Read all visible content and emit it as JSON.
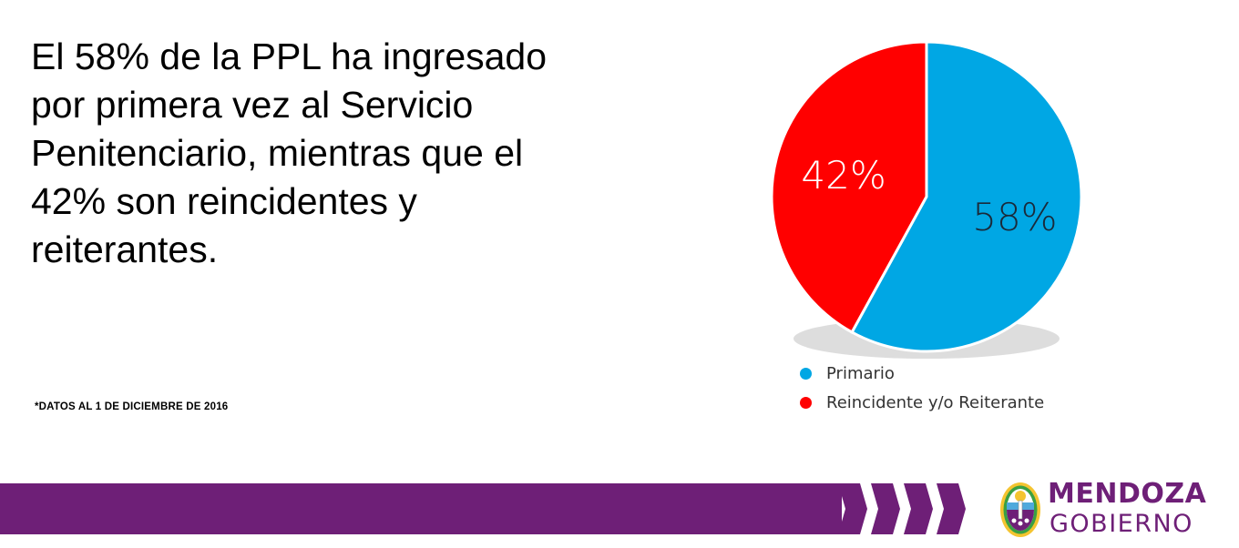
{
  "headline": "El 58% de la PPL ha ingresado\npor primera vez al Servicio\nPenitenciario, mientras que el\n42% son reincidentes y\nreiterantes.",
  "footnote": "*DATOS AL 1 DE DICIEMBRE DE 2016",
  "chart_data": {
    "type": "pie",
    "slices": [
      {
        "label": "Primario",
        "value": 58,
        "display": "58%",
        "color": "#00a7e4",
        "label_color": "#1a2a3a"
      },
      {
        "label": "Reincidente y/o Reiterante",
        "value": 42,
        "display": "42%",
        "color": "#ff0000",
        "label_color": "#ffffff"
      }
    ],
    "start_angle": "12 o'clock",
    "direction": "clockwise",
    "legend_position": "bottom"
  },
  "colors": {
    "banner": "#6e1f77",
    "chevron": "#6e1f77",
    "brand_text": "#6e1f77"
  },
  "logo": {
    "title": "MENDOZA",
    "subtitle": "GOBIERNO",
    "emblem_icon": "coat-of-arms-icon"
  }
}
